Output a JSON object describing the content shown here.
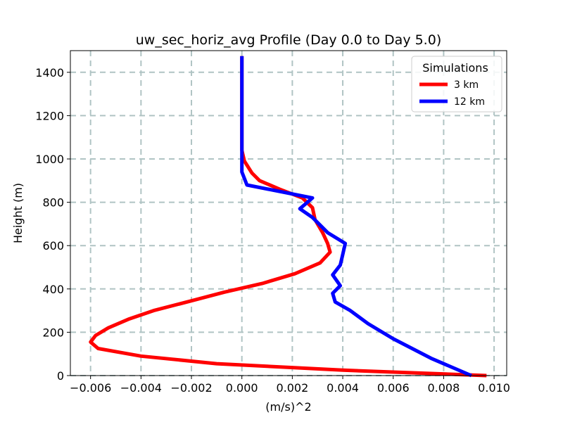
{
  "chart_data": {
    "type": "line",
    "title": "uw_sec_horiz_avg Profile (Day 0.0 to Day 5.0)",
    "xlabel": "(m/s)^2",
    "ylabel": "Height (m)",
    "xlim": [
      -0.0068,
      0.0105
    ],
    "ylim": [
      0,
      1500
    ],
    "xticks": [
      -0.006,
      -0.004,
      -0.002,
      0.0,
      0.002,
      0.004,
      0.006,
      0.008,
      0.01
    ],
    "xtick_labels": [
      "−0.006",
      "−0.004",
      "−0.002",
      "0.000",
      "0.002",
      "0.004",
      "0.006",
      "0.008",
      "0.010"
    ],
    "yticks": [
      0,
      200,
      400,
      600,
      800,
      1000,
      1200,
      1400
    ],
    "ytick_labels": [
      "0",
      "200",
      "400",
      "600",
      "800",
      "1000",
      "1200",
      "1400"
    ],
    "grid": true,
    "legend": {
      "title": "Simulations",
      "position": "top-right"
    },
    "series": [
      {
        "name": "3 km",
        "color": "#ff0000",
        "points": [
          [
            0.0097,
            0
          ],
          [
            0.004,
            25
          ],
          [
            -0.001,
            55
          ],
          [
            -0.004,
            90
          ],
          [
            -0.0057,
            125
          ],
          [
            -0.006,
            155
          ],
          [
            -0.0058,
            185
          ],
          [
            -0.0053,
            220
          ],
          [
            -0.0045,
            260
          ],
          [
            -0.0035,
            300
          ],
          [
            -0.002,
            345
          ],
          [
            -0.0007,
            385
          ],
          [
            0.0008,
            425
          ],
          [
            0.0021,
            470
          ],
          [
            0.0031,
            520
          ],
          [
            0.0035,
            570
          ],
          [
            0.0034,
            610
          ],
          [
            0.0032,
            660
          ],
          [
            0.0029,
            720
          ],
          [
            0.0028,
            775
          ],
          [
            0.0024,
            820
          ],
          [
            0.0015,
            860
          ],
          [
            0.0007,
            900
          ],
          [
            0.0004,
            935
          ],
          [
            0.0001,
            990
          ],
          [
            0.0,
            1040
          ],
          [
            0.0,
            1100
          ],
          [
            0.0,
            1200
          ],
          [
            0.0,
            1300
          ],
          [
            0.0,
            1400
          ],
          [
            0.0,
            1475
          ]
        ]
      },
      {
        "name": "12 km",
        "color": "#0000ff",
        "points": [
          [
            0.0091,
            0
          ],
          [
            0.0075,
            80
          ],
          [
            0.006,
            170
          ],
          [
            0.005,
            240
          ],
          [
            0.0043,
            300
          ],
          [
            0.0037,
            340
          ],
          [
            0.0036,
            380
          ],
          [
            0.0039,
            415
          ],
          [
            0.0036,
            465
          ],
          [
            0.0039,
            510
          ],
          [
            0.004,
            560
          ],
          [
            0.0041,
            610
          ],
          [
            0.0034,
            660
          ],
          [
            0.0028,
            730
          ],
          [
            0.0023,
            770
          ],
          [
            0.0028,
            820
          ],
          [
            0.0002,
            880
          ],
          [
            0.0,
            940
          ],
          [
            0.0,
            1000
          ],
          [
            0.0,
            1100
          ],
          [
            0.0,
            1200
          ],
          [
            0.0,
            1300
          ],
          [
            0.0,
            1400
          ],
          [
            0.0,
            1475
          ]
        ]
      }
    ]
  }
}
